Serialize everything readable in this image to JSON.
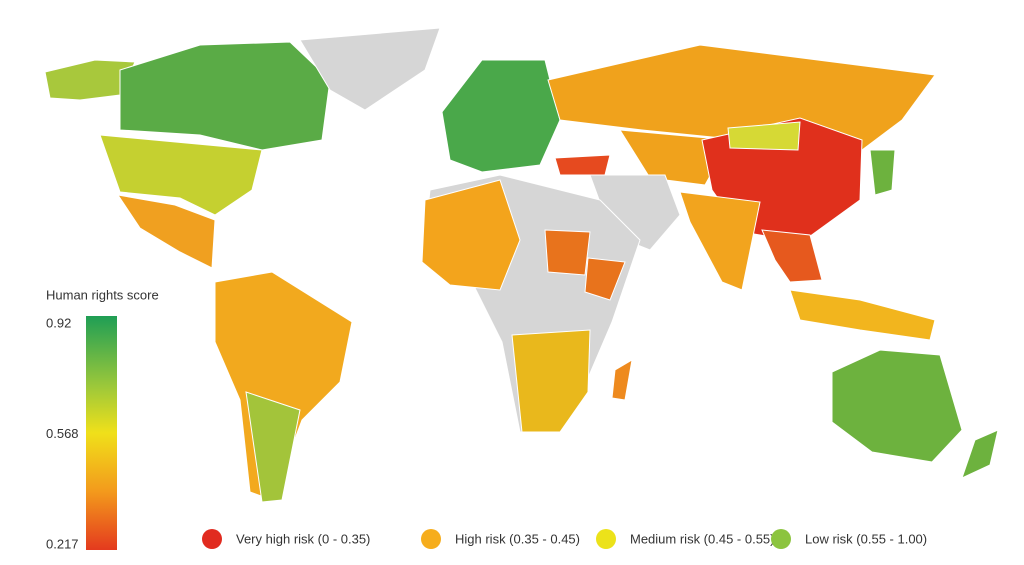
{
  "colorbar": {
    "title": "Human rights score",
    "range": [
      0.217,
      0.92
    ],
    "ticks": [
      0.92,
      0.568,
      0.217
    ]
  },
  "legend": [
    {
      "name": "Very high risk (0 - 0.35)",
      "color": "#e12b1f"
    },
    {
      "name": "High risk (0.35 - 0.45)",
      "color": "#f6ad1c"
    },
    {
      "name": "Medium risk (0.45 - 0.55)",
      "color": "#ece21a"
    },
    {
      "name": "Low risk (0.55 - 1.00)",
      "color": "#8cc43f"
    }
  ]
}
